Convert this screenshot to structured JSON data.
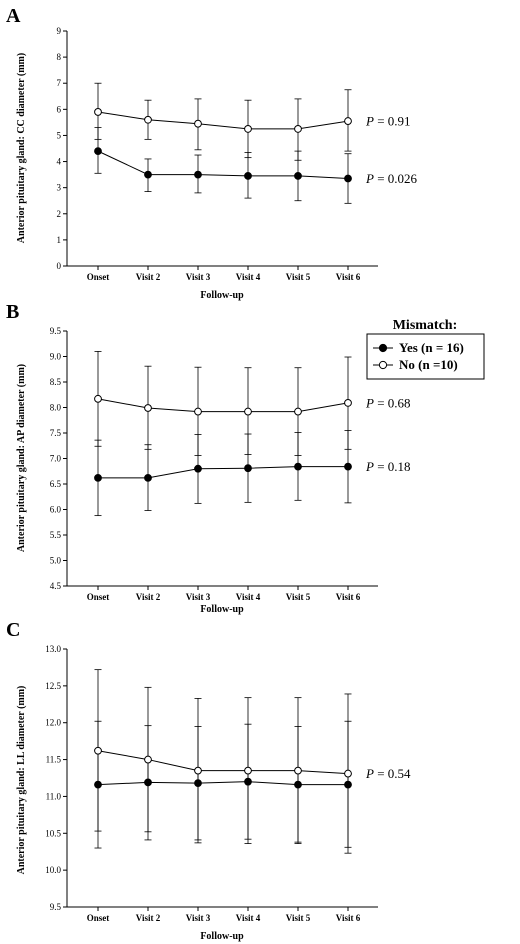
{
  "legend": {
    "title": "Mismatch:",
    "items": [
      {
        "label": "Yes (n = 16)",
        "marker": "filled-circle"
      },
      {
        "label": "No (n =10)",
        "marker": "open-circle"
      }
    ]
  },
  "chart_data": [
    {
      "panel": "A",
      "type": "line",
      "xlabel": "Follow-up",
      "ylabel": "Anterior pituitary gland: CC diameter (mm)",
      "categories": [
        "Onset",
        "Visit 2",
        "Visit 3",
        "Visit 4",
        "Visit 5",
        "Visit 6"
      ],
      "ylim": [
        0,
        9
      ],
      "yticks": [
        "0",
        "1",
        "2",
        "3",
        "4",
        "5",
        "6",
        "7",
        "8",
        "9"
      ],
      "ytick_values": [
        0,
        1,
        2,
        3,
        4,
        5,
        6,
        7,
        8,
        9
      ],
      "series": [
        {
          "name": "Yes (n = 16)",
          "marker": "filled",
          "values": [
            4.4,
            3.5,
            3.5,
            3.45,
            3.45,
            3.35
          ],
          "err_low": [
            3.55,
            2.85,
            2.8,
            2.6,
            2.5,
            2.4
          ],
          "err_high": [
            5.3,
            4.1,
            4.25,
            4.35,
            4.4,
            4.3
          ],
          "pvalue": {
            "prefix": "P",
            "text": " = 0.026"
          }
        },
        {
          "name": "No (n =10)",
          "marker": "open",
          "values": [
            5.9,
            5.6,
            5.45,
            5.25,
            5.25,
            5.55
          ],
          "err_low": [
            4.85,
            4.85,
            4.45,
            4.15,
            4.05,
            4.4
          ],
          "err_high": [
            7.0,
            6.35,
            6.4,
            6.35,
            6.4,
            6.75
          ],
          "pvalue": {
            "prefix": "P",
            "text": " = 0.91"
          }
        }
      ]
    },
    {
      "panel": "B",
      "type": "line",
      "xlabel": "Follow-up",
      "ylabel": "Anterior pituitary gland: AP diameter (mm)",
      "categories": [
        "Onset",
        "Visit 2",
        "Visit 3",
        "Visit 4",
        "Visit 5",
        "Visit 6"
      ],
      "ylim": [
        4.5,
        9.5
      ],
      "yticks": [
        "4.5",
        "5.0",
        "5.5",
        "6.0",
        "6.5",
        "7.0",
        "7.5",
        "8.0",
        "8.5",
        "9.0",
        "9.5"
      ],
      "ytick_values": [
        4.5,
        5.0,
        5.5,
        6.0,
        6.5,
        7.0,
        7.5,
        8.0,
        8.5,
        9.0,
        9.5
      ],
      "series": [
        {
          "name": "Yes (n = 16)",
          "marker": "filled",
          "values": [
            6.62,
            6.62,
            6.8,
            6.81,
            6.84,
            6.84
          ],
          "err_low": [
            5.88,
            5.98,
            6.12,
            6.14,
            6.18,
            6.13
          ],
          "err_high": [
            7.36,
            7.27,
            7.47,
            7.48,
            7.51,
            7.55
          ],
          "pvalue": {
            "prefix": "P",
            "text": " = 0.18"
          }
        },
        {
          "name": "No (n =10)",
          "marker": "open",
          "values": [
            8.17,
            7.99,
            7.92,
            7.92,
            7.92,
            8.09
          ],
          "err_low": [
            7.24,
            7.18,
            7.06,
            7.08,
            7.06,
            7.18
          ],
          "err_high": [
            9.1,
            8.81,
            8.79,
            8.78,
            8.78,
            8.99
          ],
          "pvalue": {
            "prefix": "P",
            "text": " = 0.68"
          }
        }
      ]
    },
    {
      "panel": "C",
      "type": "line",
      "xlabel": "Follow-up",
      "ylabel": "Anterior pituitary gland: LL diameter (mm)",
      "categories": [
        "Onset",
        "Visit 2",
        "Visit 3",
        "Visit 4",
        "Visit 5",
        "Visit 6"
      ],
      "ylim": [
        9.5,
        13.0
      ],
      "yticks": [
        "9.5",
        "10.0",
        "10.5",
        "11.0",
        "11.5",
        "12.0",
        "12.5",
        "13.0"
      ],
      "ytick_values": [
        9.5,
        10.0,
        10.5,
        11.0,
        11.5,
        12.0,
        12.5,
        13.0
      ],
      "series": [
        {
          "name": "Yes (n = 16)",
          "marker": "filled",
          "values": [
            11.16,
            11.19,
            11.18,
            11.2,
            11.16,
            11.16
          ],
          "err_low": [
            10.3,
            10.41,
            10.41,
            10.42,
            10.38,
            10.31
          ],
          "err_high": [
            12.02,
            11.96,
            11.95,
            11.98,
            11.95,
            12.02
          ],
          "pvalue": null
        },
        {
          "name": "No (n =10)",
          "marker": "open",
          "values": [
            11.62,
            11.5,
            11.35,
            11.35,
            11.35,
            11.31
          ],
          "err_low": [
            10.53,
            10.52,
            10.37,
            10.36,
            10.36,
            10.23
          ],
          "err_high": [
            12.72,
            12.48,
            12.33,
            12.34,
            12.34,
            12.39
          ],
          "pvalue": {
            "prefix": "P",
            "text": " = 0.54"
          }
        }
      ]
    }
  ]
}
